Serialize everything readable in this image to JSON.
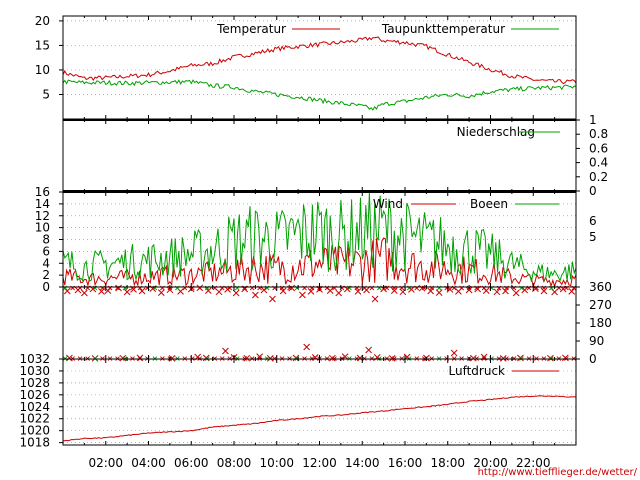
{
  "source_link": "http://www.tiefflieger.de/wetter/",
  "x_ticks": [
    "02:00",
    "04:00",
    "06:00",
    "08:00",
    "10:00",
    "12:00",
    "14:00",
    "16:00",
    "18:00",
    "20:00",
    "22:00"
  ],
  "colors": {
    "red": "#cc0000",
    "green": "#00a000",
    "grid": "#999999",
    "frame": "#000000"
  },
  "chart_data": [
    {
      "type": "line",
      "panel": "temperature",
      "x_unit": "hour of day",
      "xlim": [
        0,
        24
      ],
      "ylim": [
        0,
        21
      ],
      "y_ticks": [
        5,
        10,
        15,
        20
      ],
      "grid": true,
      "legend": "top",
      "series": [
        {
          "name": "Temperatur",
          "color": "red",
          "x": [
            0,
            1,
            2,
            3,
            4,
            5,
            6,
            7,
            8,
            9,
            10,
            11,
            12,
            13,
            14,
            14.5,
            15,
            16,
            17,
            18,
            19,
            20,
            21,
            22,
            23,
            24
          ],
          "y": [
            9.5,
            8.3,
            8.4,
            8.7,
            9.0,
            9.8,
            10.9,
            11.3,
            12.6,
            13.4,
            14.3,
            14.8,
            15.2,
            15.6,
            16.1,
            16.6,
            16.0,
            15.6,
            14.8,
            13.1,
            11.6,
            10.1,
            8.8,
            8.0,
            7.6,
            7.6
          ]
        },
        {
          "name": "Taupunkttemperatur",
          "color": "green",
          "x": [
            0,
            1,
            2,
            3,
            4,
            5,
            6,
            7,
            8,
            9,
            10,
            11,
            12,
            13,
            14,
            14.5,
            15,
            16,
            17,
            18,
            19,
            20,
            21,
            22,
            23,
            24
          ],
          "y": [
            7.6,
            7.4,
            7.4,
            7.3,
            7.4,
            7.5,
            7.6,
            6.8,
            6.5,
            5.6,
            5.0,
            4.5,
            3.8,
            3.2,
            2.6,
            2.0,
            3.0,
            3.6,
            4.4,
            5.0,
            4.7,
            5.6,
            6.0,
            6.3,
            6.4,
            6.6
          ]
        }
      ]
    },
    {
      "type": "line",
      "panel": "precipitation",
      "x_unit": "hour of day",
      "xlim": [
        0,
        24
      ],
      "ylim": [
        0,
        1
      ],
      "y_ticks": [
        "0",
        "0.2",
        "0.4",
        "0.6",
        "0.8",
        "1"
      ],
      "y_axis_side": "right",
      "grid": false,
      "legend": "top-right",
      "series": [
        {
          "name": "Niederschlag",
          "color": "green",
          "x": [
            0,
            24
          ],
          "y": [
            0,
            0
          ]
        }
      ]
    },
    {
      "type": "line",
      "panel": "wind",
      "x_unit": "hour of day",
      "xlim": [
        0,
        24
      ],
      "ylim": [
        0,
        16
      ],
      "y_ticks": [
        0,
        2,
        4,
        6,
        8,
        10,
        12,
        14,
        16
      ],
      "y2_ticks": [
        5,
        6
      ],
      "grid": true,
      "legend": "top",
      "series": [
        {
          "name": "Wind",
          "color": "red",
          "x": [
            0,
            1,
            2,
            3,
            4,
            5,
            6,
            7,
            8,
            9,
            10,
            11,
            12,
            13,
            14,
            15,
            16,
            17,
            18,
            19,
            20,
            21,
            22,
            23,
            24
          ],
          "y": [
            1.8,
            1.4,
            1.5,
            1.6,
            1.8,
            2.0,
            2.1,
            2.3,
            2.8,
            3.4,
            3.2,
            3.6,
            4.0,
            3.8,
            4.2,
            4.8,
            3.8,
            3.4,
            3.2,
            2.8,
            2.4,
            1.6,
            1.2,
            1.0,
            1.3
          ]
        },
        {
          "name": "Boeen",
          "color": "green",
          "x": [
            0,
            1,
            2,
            3,
            4,
            5,
            6,
            7,
            8,
            9,
            10,
            11,
            12,
            13,
            14,
            15,
            16,
            17,
            18,
            19,
            20,
            21,
            22,
            23,
            24
          ],
          "y": [
            4.0,
            3.4,
            3.8,
            4.2,
            4.5,
            5.0,
            5.6,
            6.2,
            7.8,
            8.4,
            7.8,
            8.8,
            9.4,
            8.6,
            9.2,
            9.8,
            8.6,
            7.6,
            7.0,
            6.4,
            5.4,
            3.8,
            2.6,
            2.2,
            2.8
          ]
        }
      ]
    },
    {
      "type": "scatter",
      "panel": "wind-direction",
      "x_unit": "hour of day",
      "xlim": [
        0,
        24
      ],
      "ylim": [
        0,
        360
      ],
      "y_ticks": [
        0,
        90,
        180,
        270,
        360
      ],
      "y_axis_side": "right",
      "series": [
        {
          "name": "",
          "color": "red",
          "x": [
            0.2,
            0.7,
            1.0,
            1.4,
            1.8,
            2.1,
            2.6,
            3.0,
            3.3,
            3.7,
            4.2,
            4.6,
            5.0,
            5.5,
            6.0,
            6.4,
            6.8,
            7.3,
            7.7,
            8.1,
            8.5,
            9.0,
            9.4,
            9.8,
            10.3,
            10.7,
            11.2,
            11.6,
            12.0,
            12.5,
            12.9,
            13.3,
            13.8,
            14.2,
            14.6,
            15.0,
            15.5,
            15.9,
            16.3,
            16.8,
            17.2,
            17.6,
            18.1,
            18.5,
            19.0,
            19.4,
            19.8,
            20.3,
            20.7,
            21.2,
            21.6,
            22.1,
            22.5,
            23.0,
            23.4,
            23.8
          ],
          "y": [
            340,
            345,
            330,
            350,
            338,
            342,
            355,
            335,
            348,
            340,
            352,
            332,
            346,
            338,
            350,
            356,
            342,
            336,
            348,
            330,
            350,
            320,
            345,
            300,
            340,
            355,
            320,
            338,
            348,
            342,
            330,
            350,
            338,
            345,
            300,
            350,
            342,
            336,
            348,
            354,
            340,
            332,
            348,
            338,
            345,
            350,
            342,
            336,
            340,
            330,
            345,
            352,
            340,
            335,
            350,
            338
          ]
        },
        {
          "name": "",
          "color": "red",
          "x": [
            0.3,
            1.5,
            2.8,
            3.6,
            5.1,
            6.3,
            6.7,
            7.6,
            8.0,
            8.6,
            9.2,
            9.7,
            10.9,
            11.4,
            11.8,
            12.6,
            13.2,
            13.9,
            14.3,
            14.7,
            15.4,
            16.1,
            17.0,
            18.3,
            19.2,
            19.7,
            20.6,
            21.4,
            22.8,
            23.5
          ],
          "y": [
            5,
            3,
            4,
            6,
            3,
            10,
            5,
            40,
            8,
            4,
            12,
            3,
            5,
            60,
            8,
            4,
            12,
            5,
            45,
            8,
            3,
            10,
            5,
            30,
            4,
            10,
            3,
            5,
            4,
            6
          ]
        }
      ]
    },
    {
      "type": "line",
      "panel": "pressure",
      "x_unit": "hour of day",
      "xlim": [
        0,
        24
      ],
      "ylim": [
        1017.6,
        1032
      ],
      "y_ticks": [
        1018,
        1020,
        1022,
        1024,
        1026,
        1028,
        1030,
        1032
      ],
      "grid": true,
      "legend": "top-right",
      "series": [
        {
          "name": "Luftdruck",
          "color": "red",
          "x": [
            0,
            1,
            2,
            3,
            4,
            5,
            6,
            7,
            8,
            9,
            10,
            11,
            12,
            13,
            14,
            15,
            16,
            17,
            18,
            19,
            20,
            21,
            22,
            23,
            24
          ],
          "y": [
            1018.3,
            1018.7,
            1018.8,
            1019.2,
            1019.6,
            1019.8,
            1020.0,
            1020.6,
            1020.9,
            1021.2,
            1021.7,
            1022.0,
            1022.4,
            1022.6,
            1023.0,
            1023.3,
            1023.7,
            1024.0,
            1024.4,
            1024.9,
            1025.2,
            1025.6,
            1025.8,
            1025.8,
            1025.6
          ]
        }
      ]
    }
  ]
}
